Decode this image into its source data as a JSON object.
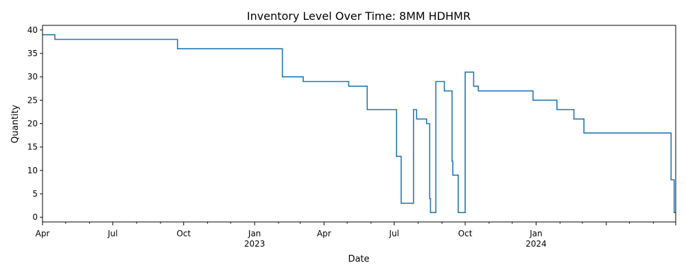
{
  "chart_data": {
    "type": "line",
    "title": "Inventory Level Over Time: 8MM HDHMR",
    "xlabel": "Date",
    "ylabel": "Quantity",
    "xlim": [
      "2022-04-01",
      "2024-06-30"
    ],
    "ylim": [
      -1,
      41
    ],
    "grid": false,
    "legend": "none",
    "yticks": [
      0,
      5,
      10,
      15,
      20,
      25,
      30,
      35,
      40
    ],
    "xticks": [
      {
        "date": "2022-04-01",
        "label": "Apr",
        "sub": ""
      },
      {
        "date": "2022-07-01",
        "label": "Jul",
        "sub": ""
      },
      {
        "date": "2022-10-01",
        "label": "Oct",
        "sub": ""
      },
      {
        "date": "2023-01-01",
        "label": "Jan",
        "sub": "2023"
      },
      {
        "date": "2023-04-01",
        "label": "Apr",
        "sub": ""
      },
      {
        "date": "2023-07-01",
        "label": "Jul",
        "sub": ""
      },
      {
        "date": "2023-10-01",
        "label": "Oct",
        "sub": ""
      },
      {
        "date": "2024-01-01",
        "label": "Jan",
        "sub": "2024"
      },
      {
        "date": "2024-04-01",
        "label": "",
        "sub": ""
      },
      {
        "date": "2024-06-30",
        "label": "",
        "sub": ""
      }
    ],
    "minor_xticks": [
      "2022-05-01",
      "2022-06-01",
      "2022-08-01",
      "2022-09-01",
      "2022-11-01",
      "2022-12-01",
      "2023-02-01",
      "2023-03-01",
      "2023-05-01",
      "2023-06-01",
      "2023-08-01",
      "2023-09-01",
      "2023-11-01",
      "2023-12-01",
      "2024-02-01",
      "2024-03-01",
      "2024-05-01",
      "2024-06-01"
    ],
    "series": [
      {
        "color": "#1f77b4",
        "step": "post",
        "points": [
          [
            "2022-04-01",
            39
          ],
          [
            "2022-04-17",
            38
          ],
          [
            "2022-09-23",
            36
          ],
          [
            "2023-02-06",
            30
          ],
          [
            "2023-03-05",
            29
          ],
          [
            "2023-05-03",
            28
          ],
          [
            "2023-05-27",
            23
          ],
          [
            "2023-07-04",
            13
          ],
          [
            "2023-07-10",
            3
          ],
          [
            "2023-07-26",
            23
          ],
          [
            "2023-07-30",
            21
          ],
          [
            "2023-08-12",
            20
          ],
          [
            "2023-08-16",
            4
          ],
          [
            "2023-08-17",
            1
          ],
          [
            "2023-08-24",
            29
          ],
          [
            "2023-09-04",
            27
          ],
          [
            "2023-09-14",
            12
          ],
          [
            "2023-09-15",
            9
          ],
          [
            "2023-09-22",
            1
          ],
          [
            "2023-10-01",
            31
          ],
          [
            "2023-10-12",
            28
          ],
          [
            "2023-10-18",
            27
          ],
          [
            "2023-12-28",
            25
          ],
          [
            "2024-01-28",
            23
          ],
          [
            "2024-02-19",
            21
          ],
          [
            "2024-03-03",
            18
          ],
          [
            "2024-06-24",
            8
          ],
          [
            "2024-06-28",
            1
          ]
        ],
        "end": [
          "2024-06-30",
          1
        ]
      }
    ]
  }
}
